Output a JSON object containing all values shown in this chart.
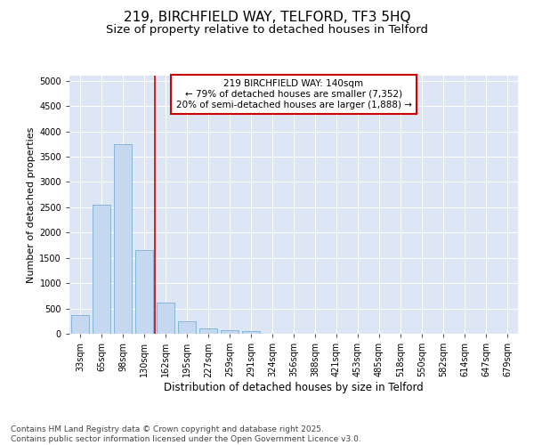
{
  "title_line1": "219, BIRCHFIELD WAY, TELFORD, TF3 5HQ",
  "title_line2": "Size of property relative to detached houses in Telford",
  "xlabel": "Distribution of detached houses by size in Telford",
  "ylabel": "Number of detached properties",
  "categories": [
    "33sqm",
    "65sqm",
    "98sqm",
    "130sqm",
    "162sqm",
    "195sqm",
    "227sqm",
    "259sqm",
    "291sqm",
    "324sqm",
    "356sqm",
    "388sqm",
    "421sqm",
    "453sqm",
    "485sqm",
    "518sqm",
    "550sqm",
    "582sqm",
    "614sqm",
    "647sqm",
    "679sqm"
  ],
  "values": [
    375,
    2550,
    3750,
    1650,
    615,
    240,
    105,
    65,
    50,
    0,
    0,
    0,
    0,
    0,
    0,
    0,
    0,
    0,
    0,
    0,
    0
  ],
  "bar_color": "#c5d8ef",
  "bar_edgecolor": "#7aafd4",
  "vline_index": 3.5,
  "vline_color": "#cc0000",
  "annotation_text": "219 BIRCHFIELD WAY: 140sqm\n← 79% of detached houses are smaller (7,352)\n20% of semi-detached houses are larger (1,888) →",
  "ylim": [
    0,
    5100
  ],
  "yticks": [
    0,
    500,
    1000,
    1500,
    2000,
    2500,
    3000,
    3500,
    4000,
    4500,
    5000
  ],
  "fig_bg_color": "#ffffff",
  "plot_bg_color": "#dce6f5",
  "grid_color": "#ffffff",
  "footer_line1": "Contains HM Land Registry data © Crown copyright and database right 2025.",
  "footer_line2": "Contains public sector information licensed under the Open Government Licence v3.0.",
  "title_fontsize": 11,
  "subtitle_fontsize": 9.5,
  "ylabel_fontsize": 8,
  "xlabel_fontsize": 8.5,
  "tick_fontsize": 7,
  "ann_fontsize": 7.5,
  "footer_fontsize": 6.5
}
